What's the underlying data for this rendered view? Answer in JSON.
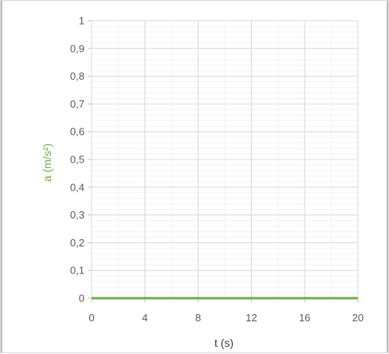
{
  "chart_data": {
    "type": "line",
    "title": "",
    "xlabel": "t (s)",
    "ylabel": "a (m/s²)",
    "xlim": [
      0,
      20
    ],
    "ylim": [
      0,
      1
    ],
    "x_ticks": [
      0,
      4,
      8,
      12,
      16,
      20
    ],
    "x_tick_labels": [
      "0",
      "4",
      "8",
      "12",
      "16",
      "20"
    ],
    "x_minor_step": 2,
    "y_ticks": [
      0,
      0.1,
      0.2,
      0.3,
      0.4,
      0.5,
      0.6,
      0.7,
      0.8,
      0.9,
      1
    ],
    "y_tick_labels": [
      "0",
      "0,1",
      "0,2",
      "0,3",
      "0,4",
      "0,5",
      "0,6",
      "0,7",
      "0,8",
      "0,9",
      "1"
    ],
    "y_minor_step": 0.02,
    "grid": true,
    "legend": "none",
    "series": [
      {
        "x": [
          0,
          20
        ],
        "y": [
          0,
          0
        ]
      }
    ],
    "colors": {
      "series": "#70ad47",
      "ylabel": "#70ad47",
      "xlabel": "#404040",
      "major_grid": "#d9d9d9",
      "minor_grid": "#f2f2f2"
    }
  }
}
